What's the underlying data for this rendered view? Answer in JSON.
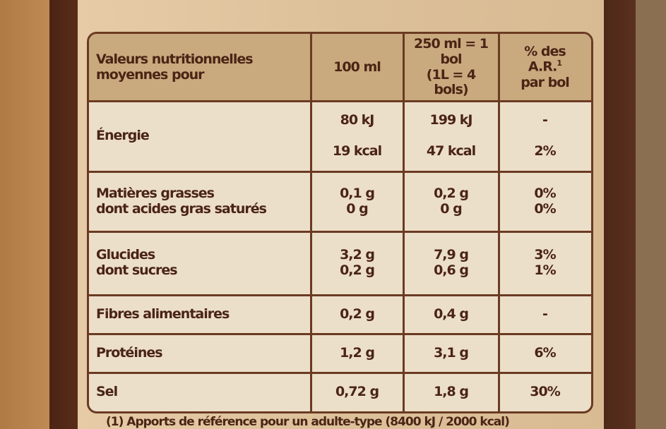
{
  "table": {
    "header": [
      {
        "lines": [
          "Valeurs nutritionnelles",
          "moyennes pour"
        ]
      },
      {
        "lines": [
          "100 ml"
        ]
      },
      {
        "lines": [
          "250 ml = 1 bol",
          "(1L = 4",
          "bols)"
        ]
      },
      {
        "lines": [
          "% des",
          "A.R.",
          "par bol"
        ],
        "sup": "1"
      }
    ],
    "rows": [
      [
        [
          "Énergie"
        ],
        [
          "80 kJ",
          "19 kcal"
        ],
        [
          "199 kJ",
          "47 kcal"
        ],
        [
          "-",
          "2%"
        ]
      ],
      [
        [
          "Matières grasses",
          "dont acides gras saturés"
        ],
        [
          "0,1 g",
          "0 g"
        ],
        [
          "0,2 g",
          "0 g"
        ],
        [
          "0%",
          "0%"
        ]
      ],
      [
        [
          "Glucides",
          "dont sucres"
        ],
        [
          "3,2 g",
          "0,2 g"
        ],
        [
          "7,9 g",
          "0,6 g"
        ],
        [
          "3%",
          "1%"
        ]
      ],
      [
        [
          "Fibres alimentaires"
        ],
        [
          "0,2 g"
        ],
        [
          "0,4 g"
        ],
        [
          "-"
        ]
      ],
      [
        [
          "Protéines"
        ],
        [
          "1,2 g"
        ],
        [
          "3,1 g"
        ],
        [
          "6%"
        ]
      ],
      [
        [
          "Sel"
        ],
        [
          "0,72 g"
        ],
        [
          "1,8 g"
        ],
        [
          "30%"
        ]
      ]
    ],
    "footnote": "(1) Apports de référence pour un adulte-type (8400 kJ / 2000 kcal)"
  }
}
